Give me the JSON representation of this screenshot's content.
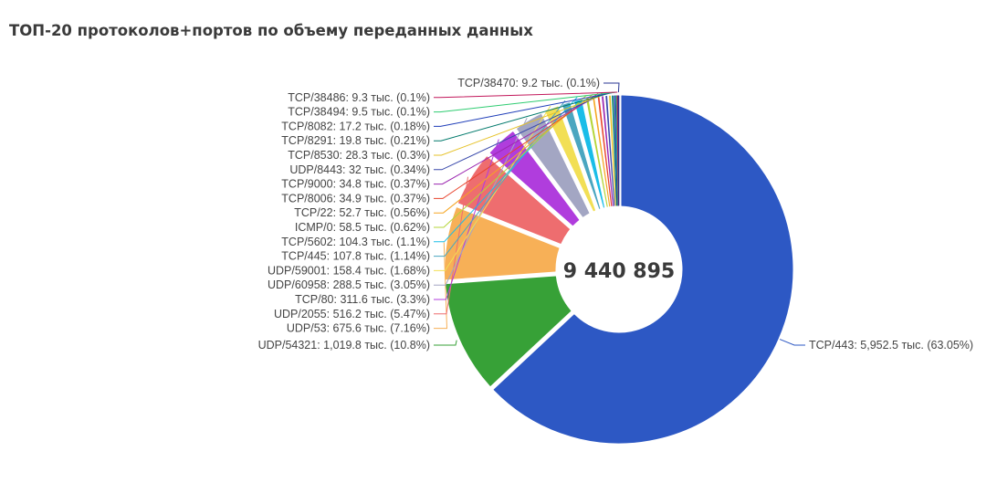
{
  "chart_data": {
    "type": "pie",
    "variant": "donut",
    "title": "ТОП-20 протоколов+портов по объему переданных данных",
    "center_total": "9 440 895",
    "slices": [
      {
        "label": "TCP/443: 5,952.5 тыс. (63.05%)",
        "value": 5952.5,
        "percent": 63.05,
        "color": "#2d58c4"
      },
      {
        "label": "UDP/54321: 1,019.8 тыс. (10.8%)",
        "value": 1019.8,
        "percent": 10.8,
        "color": "#37a137"
      },
      {
        "label": "UDP/53: 675.6 тыс. (7.16%)",
        "value": 675.6,
        "percent": 7.16,
        "color": "#f7b057"
      },
      {
        "label": "UDP/2055: 516.2 тыс. (5.47%)",
        "value": 516.2,
        "percent": 5.47,
        "color": "#ee6d6f"
      },
      {
        "label": "TCP/80: 311.6 тыс. (3.3%)",
        "value": 311.6,
        "percent": 3.3,
        "color": "#b03ddd"
      },
      {
        "label": "UDP/60958: 288.5 тыс. (3.05%)",
        "value": 288.5,
        "percent": 3.05,
        "color": "#a3a6c3"
      },
      {
        "label": "UDP/59001: 158.4 тыс. (1.68%)",
        "value": 158.4,
        "percent": 1.68,
        "color": "#f2df55"
      },
      {
        "label": "TCP/445: 107.8 тыс. (1.14%)",
        "value": 107.8,
        "percent": 1.14,
        "color": "#4ba6c0"
      },
      {
        "label": "TCP/5602: 104.3 тыс. (1.1%)",
        "value": 104.3,
        "percent": 1.1,
        "color": "#1abde8"
      },
      {
        "label": "ICMP/0: 58.5 тыс. (0.62%)",
        "value": 58.5,
        "percent": 0.62,
        "color": "#b5d538"
      },
      {
        "label": "TCP/22: 52.7 тыс. (0.56%)",
        "value": 52.7,
        "percent": 0.56,
        "color": "#f5a623"
      },
      {
        "label": "TCP/8006: 34.9 тыс. (0.37%)",
        "value": 34.9,
        "percent": 0.37,
        "color": "#e8442e"
      },
      {
        "label": "TCP/9000: 34.8 тыс. (0.37%)",
        "value": 34.8,
        "percent": 0.37,
        "color": "#9c27b0"
      },
      {
        "label": "UDP/8443: 32 тыс. (0.34%)",
        "value": 32,
        "percent": 0.34,
        "color": "#3949ab"
      },
      {
        "label": "TCP/8530: 28.3 тыс. (0.3%)",
        "value": 28.3,
        "percent": 0.3,
        "color": "#e6c229"
      },
      {
        "label": "TCP/8291: 19.8 тыс. (0.21%)",
        "value": 19.8,
        "percent": 0.21,
        "color": "#00796b"
      },
      {
        "label": "TCP/8082: 17.2 тыс. (0.18%)",
        "value": 17.2,
        "percent": 0.18,
        "color": "#1e3db8"
      },
      {
        "label": "TCP/38494: 9.5 тыс. (0.1%)",
        "value": 9.5,
        "percent": 0.1,
        "color": "#2ecc71"
      },
      {
        "label": "TCP/38486: 9.3 тыс. (0.1%)",
        "value": 9.3,
        "percent": 0.1,
        "color": "#c2185b"
      },
      {
        "label": "TCP/38470: 9.2 тыс. (0.1%)",
        "value": 9.2,
        "percent": 0.1,
        "color": "#283593"
      }
    ]
  }
}
